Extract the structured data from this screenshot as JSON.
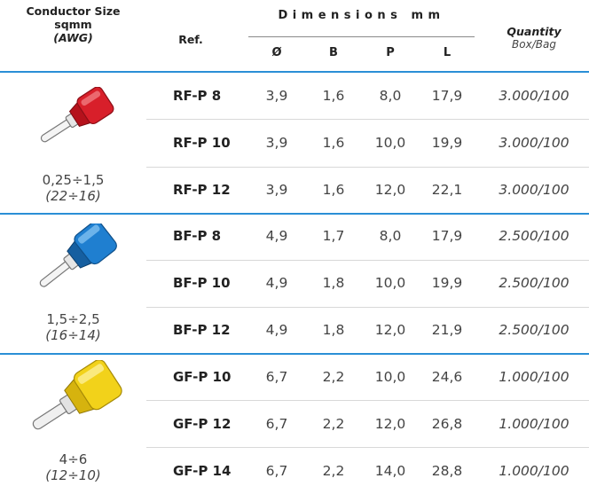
{
  "header": {
    "conductor_size_l1": "Conductor Size",
    "conductor_size_l2": "sqmm",
    "conductor_size_l3": "(AWG)",
    "ref": "Ref.",
    "dimensions": "Dimensions mm",
    "col_d": "Ø",
    "col_b": "B",
    "col_p": "P",
    "col_l": "L",
    "quantity": "Quantity",
    "box_bag": "Box/Bag"
  },
  "groups": [
    {
      "size": "0,25÷1,5",
      "awg": "(22÷16)",
      "insulation_color": "#d81f2a",
      "icon": "red-pin-terminal-icon",
      "rows": [
        {
          "ref": "RF-P 8",
          "d": "3,9",
          "b": "1,6",
          "p": "8,0",
          "l": "17,9",
          "qty": "3.000/100"
        },
        {
          "ref": "RF-P 10",
          "d": "3,9",
          "b": "1,6",
          "p": "10,0",
          "l": "19,9",
          "qty": "3.000/100"
        },
        {
          "ref": "RF-P 12",
          "d": "3,9",
          "b": "1,6",
          "p": "12,0",
          "l": "22,1",
          "qty": "3.000/100"
        }
      ]
    },
    {
      "size": "1,5÷2,5",
      "awg": "(16÷14)",
      "insulation_color": "#1f7fd0",
      "icon": "blue-pin-terminal-icon",
      "rows": [
        {
          "ref": "BF-P 8",
          "d": "4,9",
          "b": "1,7",
          "p": "8,0",
          "l": "17,9",
          "qty": "2.500/100"
        },
        {
          "ref": "BF-P 10",
          "d": "4,9",
          "b": "1,8",
          "p": "10,0",
          "l": "19,9",
          "qty": "2.500/100"
        },
        {
          "ref": "BF-P 12",
          "d": "4,9",
          "b": "1,8",
          "p": "12,0",
          "l": "21,9",
          "qty": "2.500/100"
        }
      ]
    },
    {
      "size": "4÷6",
      "awg": "(12÷10)",
      "insulation_color": "#f2d21a",
      "icon": "yellow-pin-terminal-icon",
      "rows": [
        {
          "ref": "GF-P 10",
          "d": "6,7",
          "b": "2,2",
          "p": "10,0",
          "l": "24,6",
          "qty": "1.000/100"
        },
        {
          "ref": "GF-P 12",
          "d": "6,7",
          "b": "2,2",
          "p": "12,0",
          "l": "26,8",
          "qty": "1.000/100"
        },
        {
          "ref": "GF-P 14",
          "d": "6,7",
          "b": "2,2",
          "p": "14,0",
          "l": "28,8",
          "qty": "1.000/100"
        }
      ]
    }
  ]
}
